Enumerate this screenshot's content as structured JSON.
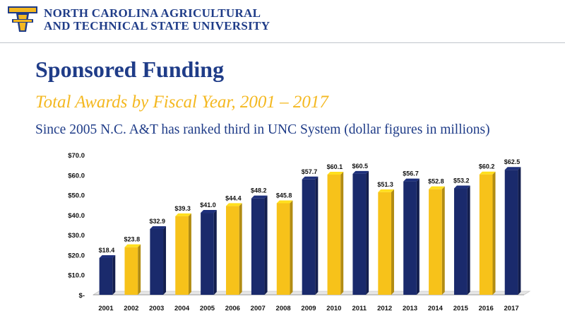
{
  "header": {
    "university_line1": "NORTH CAROLINA AGRICULTURAL",
    "university_line2": "AND TECHNICAL STATE UNIVERSITY",
    "logo_icon": "aggie-shield-logo-icon",
    "colors": {
      "navy": "#1f3c88",
      "gold": "#f4b820"
    }
  },
  "slide": {
    "title": "Sponsored Funding",
    "subtitle": "Total Awards by Fiscal Year, 2001 – 2017",
    "note": "Since 2005 N.C. A&T has ranked third in UNC System (dollar figures in millions)"
  },
  "chart_data": {
    "type": "bar",
    "title": "",
    "xlabel": "",
    "ylabel": "",
    "ylim": [
      0,
      70
    ],
    "y_ticks": [
      "$-",
      "$10.0",
      "$20.0",
      "$30.0",
      "$40.0",
      "$50.0",
      "$60.0",
      "$70.0"
    ],
    "categories": [
      "2001",
      "2002",
      "2003",
      "2004",
      "2005",
      "2006",
      "2007",
      "2008",
      "2009",
      "2010",
      "2011",
      "2012",
      "2013",
      "2014",
      "2015",
      "2016",
      "2017"
    ],
    "values": [
      18.4,
      23.8,
      32.9,
      39.3,
      41.0,
      44.4,
      48.2,
      45.8,
      57.7,
      60.1,
      60.5,
      51.3,
      56.7,
      52.8,
      53.2,
      60.2,
      62.5
    ],
    "data_labels": [
      "$18.4",
      "$23.8",
      "$32.9",
      "$39.3",
      "$41.0",
      "$44.4",
      "$48.2",
      "$45.8",
      "$57.7",
      "$60.1",
      "$60.5",
      "$51.3",
      "$56.7",
      "$52.8",
      "$53.2",
      "$60.2",
      "$62.5"
    ],
    "bar_colors": [
      "navy",
      "gold",
      "navy",
      "gold",
      "navy",
      "gold",
      "navy",
      "gold",
      "navy",
      "gold",
      "navy",
      "gold",
      "navy",
      "gold",
      "navy",
      "gold",
      "navy"
    ],
    "palette": {
      "navy": "#1a2a6c",
      "gold": "#f7c21a"
    },
    "grid": false,
    "legend": "none",
    "style": "3d-bars"
  }
}
